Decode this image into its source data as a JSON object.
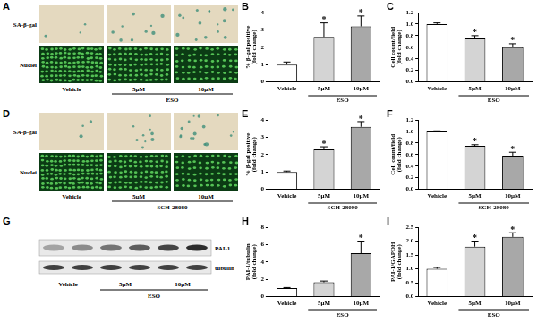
{
  "image_panels": [
    {
      "panel": "A",
      "row_labels": [
        "SA-β-gal",
        "Nuclei"
      ],
      "columns": [
        "Vehicle",
        "5μM",
        "10μM"
      ],
      "group": {
        "label": "ESO",
        "categories": [
          "5μM",
          "10μM"
        ]
      }
    },
    {
      "panel": "D",
      "row_labels": [
        "SA-β-gal",
        "Nuclei"
      ],
      "columns": [
        "Vehicle",
        "5μM",
        "10μM"
      ],
      "group": {
        "label": "SCH-28080",
        "categories": [
          "5μM",
          "10μM"
        ]
      }
    },
    {
      "panel": "G",
      "band_labels": [
        "PAI-1",
        "tubulin"
      ],
      "columns": [
        "Vehicle",
        "5μM",
        "10μM"
      ],
      "group": {
        "label": "ESO",
        "categories": [
          "5μM",
          "10μM"
        ]
      }
    }
  ],
  "chart_data": [
    {
      "panel": "B",
      "type": "bar",
      "ylabel": [
        "% β-gal positive",
        "(fold change)"
      ],
      "categories": [
        "Vehicle",
        "5μM",
        "10μM"
      ],
      "values": [
        1.0,
        2.6,
        3.2
      ],
      "errors": [
        0.15,
        0.8,
        0.6
      ],
      "significance": [
        null,
        "*",
        "*"
      ],
      "group": {
        "label": "ESO",
        "categories": [
          "5μM",
          "10μM"
        ]
      },
      "colors": [
        "#ffffff",
        "#d4d4d4",
        "#a8a8a8"
      ],
      "ylim": [
        0,
        4
      ],
      "yticks": [
        0,
        1,
        2,
        3,
        4
      ],
      "grid": false
    },
    {
      "panel": "C",
      "type": "bar",
      "ylabel": [
        "Cell count/field",
        "(fold change)"
      ],
      "categories": [
        "Vehicle",
        "5μM",
        "10μM"
      ],
      "values": [
        1.0,
        0.75,
        0.6
      ],
      "errors": [
        0.02,
        0.05,
        0.06
      ],
      "significance": [
        null,
        "*",
        "*"
      ],
      "group": {
        "label": "ESO",
        "categories": [
          "5μM",
          "10μM"
        ]
      },
      "colors": [
        "#ffffff",
        "#d4d4d4",
        "#a8a8a8"
      ],
      "ylim": [
        0,
        1.2
      ],
      "yticks": [
        {
          "value": 0,
          "label": "0.0"
        },
        {
          "value": 0.2,
          "label": "0.2"
        },
        {
          "value": 0.4,
          "label": "0.4"
        },
        {
          "value": 0.6,
          "label": "0.6"
        },
        {
          "value": 0.8,
          "label": "0.8"
        },
        {
          "value": 1.0,
          "label": "1.0"
        },
        {
          "value": 1.2,
          "label": "1.2"
        }
      ],
      "grid": false
    },
    {
      "panel": "E",
      "type": "bar",
      "ylabel": [
        "% β-gal positive",
        "(fold change)"
      ],
      "categories": [
        "Vehicle",
        "5μM",
        "10μM"
      ],
      "values": [
        1.0,
        2.3,
        3.6
      ],
      "errors": [
        0.05,
        0.15,
        0.3
      ],
      "significance": [
        null,
        "*",
        "*"
      ],
      "group": {
        "label": "SCH-28080",
        "categories": [
          "5μM",
          "10μM"
        ]
      },
      "colors": [
        "#ffffff",
        "#d4d4d4",
        "#a8a8a8"
      ],
      "ylim": [
        0,
        4
      ],
      "yticks": [
        0,
        1,
        2,
        3,
        4
      ],
      "grid": false
    },
    {
      "panel": "F",
      "type": "bar",
      "ylabel": [
        "Cell count/field",
        "(fold change)"
      ],
      "categories": [
        "Vehicle",
        "5μM",
        "10μM"
      ],
      "values": [
        1.0,
        0.75,
        0.58
      ],
      "errors": [
        0.01,
        0.02,
        0.06
      ],
      "significance": [
        null,
        "*",
        "*"
      ],
      "group": {
        "label": "SCH-28080",
        "categories": [
          "5μM",
          "10μM"
        ]
      },
      "colors": [
        "#ffffff",
        "#d4d4d4",
        "#a8a8a8"
      ],
      "ylim": [
        0,
        1.2
      ],
      "yticks": [
        {
          "value": 0,
          "label": "0.0"
        },
        {
          "value": 0.2,
          "label": "0.2"
        },
        {
          "value": 0.4,
          "label": "0.4"
        },
        {
          "value": 0.6,
          "label": "0.6"
        },
        {
          "value": 0.8,
          "label": "0.8"
        },
        {
          "value": 1.0,
          "label": "1.0"
        },
        {
          "value": 1.2,
          "label": "1.2"
        }
      ],
      "grid": false
    },
    {
      "panel": "H",
      "type": "bar",
      "ylabel": [
        "PAI-1/tubulin",
        "(fold change)"
      ],
      "categories": [
        "Vehicle",
        "5μM",
        "10μM"
      ],
      "values": [
        1.0,
        1.65,
        5.0
      ],
      "errors": [
        0.05,
        0.15,
        1.4
      ],
      "significance": [
        null,
        null,
        "*"
      ],
      "group": {
        "label": "ESO",
        "categories": [
          "5μM",
          "10μM"
        ]
      },
      "colors": [
        "#ffffff",
        "#d4d4d4",
        "#a8a8a8"
      ],
      "ylim": [
        0,
        8
      ],
      "yticks": [
        0,
        2,
        4,
        6,
        8
      ],
      "grid": false
    },
    {
      "panel": "I",
      "type": "bar",
      "ylabel": [
        "PAI-1/GAPDH",
        "(fold change)"
      ],
      "categories": [
        "Vehicle",
        "5μM",
        "10μM"
      ],
      "values": [
        1.0,
        1.8,
        2.15
      ],
      "errors": [
        0.05,
        0.2,
        0.15
      ],
      "significance": [
        null,
        "*",
        "*"
      ],
      "group": {
        "label": "ESO",
        "categories": [
          "5μM",
          "10μM"
        ]
      },
      "colors": [
        "#ffffff",
        "#d4d4d4",
        "#a8a8a8"
      ],
      "ylim": [
        0,
        2.5
      ],
      "yticks": [
        {
          "value": 0,
          "label": "0.0"
        },
        {
          "value": 0.5,
          "label": "0.5"
        },
        {
          "value": 1.0,
          "label": "1.0"
        },
        {
          "value": 1.5,
          "label": "1.5"
        },
        {
          "value": 2.0,
          "label": "2.0"
        },
        {
          "value": 2.5,
          "label": "2.5"
        }
      ],
      "grid": false
    }
  ]
}
